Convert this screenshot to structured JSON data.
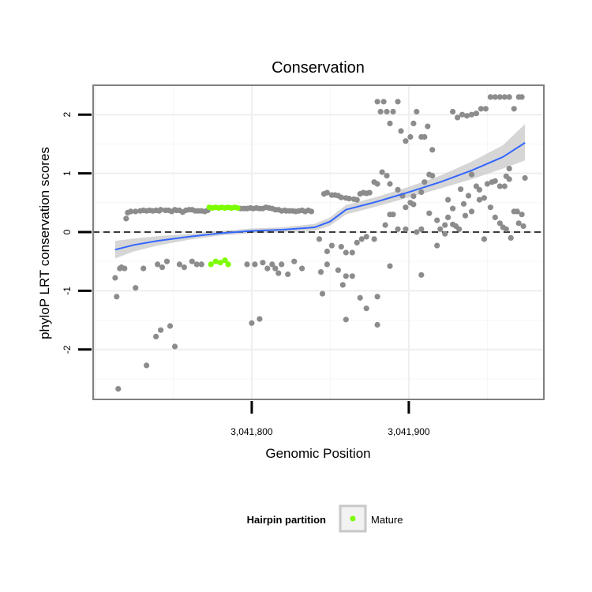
{
  "chart_data": {
    "type": "scatter",
    "title": "Conservation",
    "xlabel": "Genomic Position",
    "ylabel": "phyloP LRT conservation scores",
    "xlim": [
      3041699,
      3041986
    ],
    "ylim": [
      -2.85,
      2.5
    ],
    "x_ticks": [
      {
        "value": 3041800,
        "label": "3,041,800"
      },
      {
        "value": 3041900,
        "label": "3,041,900"
      }
    ],
    "y_ticks": [
      {
        "value": -2,
        "label": "-2"
      },
      {
        "value": -1,
        "label": "-1"
      },
      {
        "value": 0,
        "label": "0"
      },
      {
        "value": 1,
        "label": "1"
      },
      {
        "value": 2,
        "label": "2"
      }
    ],
    "grid": true,
    "reference_line": {
      "y": 0,
      "style": "dashed"
    },
    "legend": {
      "title": "Hairpin partition",
      "position": "bottom",
      "entries": [
        {
          "label": "Mature",
          "color": "#7cfc00"
        }
      ]
    },
    "colors": {
      "point": "#8c8c8c",
      "mature": "#7cfc00",
      "smooth": "#3366ff",
      "band": "#cccccc",
      "panel_border": "#7f7f7f"
    },
    "series": [
      {
        "color": "#8c8c8c",
        "points": [
          [
            3041713,
            -0.78
          ],
          [
            3041714,
            -1.1
          ],
          [
            3041715,
            -2.67
          ],
          [
            3041716,
            -0.62
          ],
          [
            3041717,
            -0.6
          ],
          [
            3041719,
            -0.62
          ],
          [
            3041720,
            0.23
          ],
          [
            3041721,
            0.33
          ],
          [
            3041723,
            0.35
          ],
          [
            3041726,
            0.35
          ],
          [
            3041729,
            0.36
          ],
          [
            3041731,
            0.37
          ],
          [
            3041733,
            0.36
          ],
          [
            3041735,
            0.37
          ],
          [
            3041737,
            0.36
          ],
          [
            3041739,
            0.37
          ],
          [
            3041741,
            0.36
          ],
          [
            3041742,
            0.38
          ],
          [
            3041745,
            0.37
          ],
          [
            3041747,
            0.37
          ],
          [
            3041749,
            0.35
          ],
          [
            3041751,
            0.38
          ],
          [
            3041752,
            0.37
          ],
          [
            3041754,
            0.37
          ],
          [
            3041756,
            0.34
          ],
          [
            3041758,
            0.37
          ],
          [
            3041760,
            0.38
          ],
          [
            3041762,
            0.38
          ],
          [
            3041764,
            0.36
          ],
          [
            3041766,
            0.36
          ],
          [
            3041768,
            0.36
          ],
          [
            3041770,
            0.35
          ],
          [
            3041772,
            0.37
          ],
          [
            3041793,
            0.4
          ],
          [
            3041795,
            0.4
          ],
          [
            3041797,
            0.4
          ],
          [
            3041799,
            0.41
          ],
          [
            3041801,
            0.4
          ],
          [
            3041803,
            0.41
          ],
          [
            3041805,
            0.4
          ],
          [
            3041807,
            0.4
          ],
          [
            3041809,
            0.42
          ],
          [
            3041811,
            0.41
          ],
          [
            3041813,
            0.4
          ],
          [
            3041815,
            0.38
          ],
          [
            3041817,
            0.38
          ],
          [
            3041819,
            0.36
          ],
          [
            3041821,
            0.37
          ],
          [
            3041822,
            0.36
          ],
          [
            3041824,
            0.36
          ],
          [
            3041826,
            0.36
          ],
          [
            3041828,
            0.35
          ],
          [
            3041830,
            0.36
          ],
          [
            3041832,
            0.37
          ],
          [
            3041834,
            0.35
          ],
          [
            3041836,
            0.37
          ],
          [
            3041838,
            0.35
          ],
          [
            3041726,
            -0.95
          ],
          [
            3041731,
            -0.62
          ],
          [
            3041733,
            -2.27
          ],
          [
            3041739,
            -1.78
          ],
          [
            3041740,
            -0.55
          ],
          [
            3041742,
            -1.67
          ],
          [
            3041743,
            -0.6
          ],
          [
            3041746,
            -0.5
          ],
          [
            3041748,
            -1.6
          ],
          [
            3041751,
            -1.95
          ],
          [
            3041754,
            -0.55
          ],
          [
            3041757,
            -0.6
          ],
          [
            3041762,
            -0.5
          ],
          [
            3041765,
            -0.55
          ],
          [
            3041768,
            -0.55
          ],
          [
            3041797,
            -0.55
          ],
          [
            3041800,
            -1.55
          ],
          [
            3041802,
            -0.55
          ],
          [
            3041805,
            -1.48
          ],
          [
            3041807,
            -0.52
          ],
          [
            3041810,
            -0.62
          ],
          [
            3041813,
            -0.55
          ],
          [
            3041815,
            -0.62
          ],
          [
            3041817,
            -0.7
          ],
          [
            3041819,
            -0.55
          ],
          [
            3041823,
            -0.72
          ],
          [
            3041827,
            -0.5
          ],
          [
            3041832,
            -0.62
          ],
          [
            3041844,
            -0.68
          ],
          [
            3041845,
            -1.05
          ],
          [
            3041848,
            -0.55
          ],
          [
            3041855,
            -0.65
          ],
          [
            3041858,
            -0.9
          ],
          [
            3041860,
            -0.75
          ],
          [
            3041864,
            -0.75
          ],
          [
            3041869,
            -1.12
          ],
          [
            3041873,
            -1.3
          ],
          [
            3041880,
            -1.1
          ],
          [
            3041888,
            -0.58
          ],
          [
            3041908,
            -0.73
          ],
          [
            3041860,
            -1.49
          ],
          [
            3041880,
            -1.58
          ],
          [
            3041843,
            -0.12
          ],
          [
            3041846,
            0.65
          ],
          [
            3041848,
            0.67
          ],
          [
            3041851,
            0.63
          ],
          [
            3041853,
            0.63
          ],
          [
            3041855,
            0.62
          ],
          [
            3041857,
            0.59
          ],
          [
            3041860,
            0.58
          ],
          [
            3041862,
            0.57
          ],
          [
            3041865,
            0.56
          ],
          [
            3041867,
            0.55
          ],
          [
            3041869,
            0.65
          ],
          [
            3041871,
            0.67
          ],
          [
            3041873,
            0.66
          ],
          [
            3041875,
            0.67
          ],
          [
            3041878,
            0.85
          ],
          [
            3041880,
            0.82
          ],
          [
            3041883,
            1.02
          ],
          [
            3041886,
            0.96
          ],
          [
            3041888,
            0.82
          ],
          [
            3041890,
            0.3
          ],
          [
            3041893,
            0.72
          ],
          [
            3041896,
            0.62
          ],
          [
            3041898,
            0.05
          ],
          [
            3041901,
            0.5
          ],
          [
            3041903,
            0.61
          ],
          [
            3041905,
            0.0
          ],
          [
            3041908,
            0.68
          ],
          [
            3041910,
            0.85
          ],
          [
            3041913,
            0.98
          ],
          [
            3041915,
            0.96
          ],
          [
            3041918,
            0.2
          ],
          [
            3041920,
            0.05
          ],
          [
            3041923,
            -0.03
          ],
          [
            3041925,
            0.25
          ],
          [
            3041928,
            0.4
          ],
          [
            3041930,
            0.1
          ],
          [
            3041933,
            0.73
          ],
          [
            3041935,
            0.48
          ],
          [
            3041938,
            0.62
          ],
          [
            3041940,
            0.98
          ],
          [
            3041943,
            0.78
          ],
          [
            3041945,
            0.72
          ],
          [
            3041948,
            0.58
          ],
          [
            3041950,
            0.82
          ],
          [
            3041953,
            0.85
          ],
          [
            3041955,
            0.87
          ],
          [
            3041958,
            0.78
          ],
          [
            3041960,
            0.08
          ],
          [
            3041962,
            0.95
          ],
          [
            3041964,
            0.9
          ],
          [
            3041848,
            -0.33
          ],
          [
            3041851,
            -0.23
          ],
          [
            3041857,
            -0.25
          ],
          [
            3041860,
            -0.35
          ],
          [
            3041864,
            -0.35
          ],
          [
            3041867,
            -0.18
          ],
          [
            3041870,
            -0.12
          ],
          [
            3041873,
            -0.08
          ],
          [
            3041878,
            -0.12
          ],
          [
            3041885,
            0.12
          ],
          [
            3041888,
            0.3
          ],
          [
            3041893,
            0.05
          ],
          [
            3041898,
            0.42
          ],
          [
            3041903,
            0.47
          ],
          [
            3041908,
            0.05
          ],
          [
            3041913,
            0.32
          ],
          [
            3041918,
            -0.23
          ],
          [
            3041923,
            0.12
          ],
          [
            3041925,
            0.55
          ],
          [
            3041928,
            0.13
          ],
          [
            3041932,
            0.05
          ],
          [
            3041936,
            0.28
          ],
          [
            3041940,
            0.35
          ],
          [
            3041945,
            0.55
          ],
          [
            3041948,
            -0.12
          ],
          [
            3041952,
            0.42
          ],
          [
            3041955,
            0.25
          ],
          [
            3041958,
            0.15
          ],
          [
            3041962,
            0.05
          ],
          [
            3041965,
            -0.1
          ],
          [
            3041969,
            0.35
          ],
          [
            3041972,
            0.3
          ],
          [
            3041880,
            2.22
          ],
          [
            3041882,
            2.05
          ],
          [
            3041884,
            2.22
          ],
          [
            3041886,
            2.05
          ],
          [
            3041888,
            1.85
          ],
          [
            3041890,
            2.05
          ],
          [
            3041893,
            2.22
          ],
          [
            3041895,
            1.72
          ],
          [
            3041898,
            1.55
          ],
          [
            3041901,
            1.62
          ],
          [
            3041903,
            1.85
          ],
          [
            3041905,
            2.05
          ],
          [
            3041908,
            1.62
          ],
          [
            3041910,
            1.62
          ],
          [
            3041912,
            1.8
          ],
          [
            3041915,
            1.4
          ],
          [
            3041928,
            2.05
          ],
          [
            3041931,
            1.95
          ],
          [
            3041934,
            2.0
          ],
          [
            3041937,
            1.98
          ],
          [
            3041940,
            2.0
          ],
          [
            3041943,
            2.02
          ],
          [
            3041946,
            2.1
          ],
          [
            3041949,
            2.1
          ],
          [
            3041952,
            2.3
          ],
          [
            3041955,
            2.3
          ],
          [
            3041958,
            2.3
          ],
          [
            3041961,
            2.3
          ],
          [
            3041964,
            2.3
          ],
          [
            3041967,
            2.1
          ],
          [
            3041970,
            2.3
          ],
          [
            3041972,
            2.3
          ],
          [
            3041974,
            0.92
          ],
          [
            3041973,
            0.1
          ],
          [
            3041970,
            0.15
          ],
          [
            3041967,
            0.35
          ],
          [
            3041964,
            1.08
          ],
          [
            3041961,
            0.78
          ]
        ]
      },
      {
        "name": "Mature",
        "color": "#7cfc00",
        "points": [
          [
            3041773,
            0.42
          ],
          [
            3041775,
            0.41
          ],
          [
            3041777,
            0.42
          ],
          [
            3041779,
            0.41
          ],
          [
            3041781,
            0.42
          ],
          [
            3041783,
            0.41
          ],
          [
            3041785,
            0.42
          ],
          [
            3041787,
            0.41
          ],
          [
            3041789,
            0.42
          ],
          [
            3041791,
            0.41
          ],
          [
            3041774,
            -0.55
          ],
          [
            3041777,
            -0.5
          ],
          [
            3041783,
            -0.48
          ],
          [
            3041785,
            -0.55
          ],
          [
            3041780,
            -0.52
          ]
        ]
      }
    ],
    "smooth": {
      "color": "#3366ff",
      "x": [
        3041713,
        3041725,
        3041740,
        3041760,
        3041780,
        3041800,
        3041820,
        3041840,
        3041850,
        3041860,
        3041880,
        3041900,
        3041920,
        3041940,
        3041960,
        3041974
      ],
      "y": [
        -0.3,
        -0.22,
        -0.15,
        -0.08,
        -0.02,
        0.02,
        0.04,
        0.08,
        0.18,
        0.38,
        0.52,
        0.68,
        0.85,
        1.05,
        1.28,
        1.52
      ],
      "band_lower": [
        -0.45,
        -0.33,
        -0.23,
        -0.13,
        -0.06,
        -0.02,
        0.0,
        0.02,
        0.11,
        0.3,
        0.44,
        0.59,
        0.74,
        0.9,
        1.08,
        1.22
      ],
      "band_upper": [
        -0.15,
        -0.11,
        -0.07,
        -0.03,
        0.02,
        0.06,
        0.08,
        0.14,
        0.25,
        0.46,
        0.6,
        0.77,
        0.96,
        1.2,
        1.48,
        1.84
      ]
    }
  }
}
